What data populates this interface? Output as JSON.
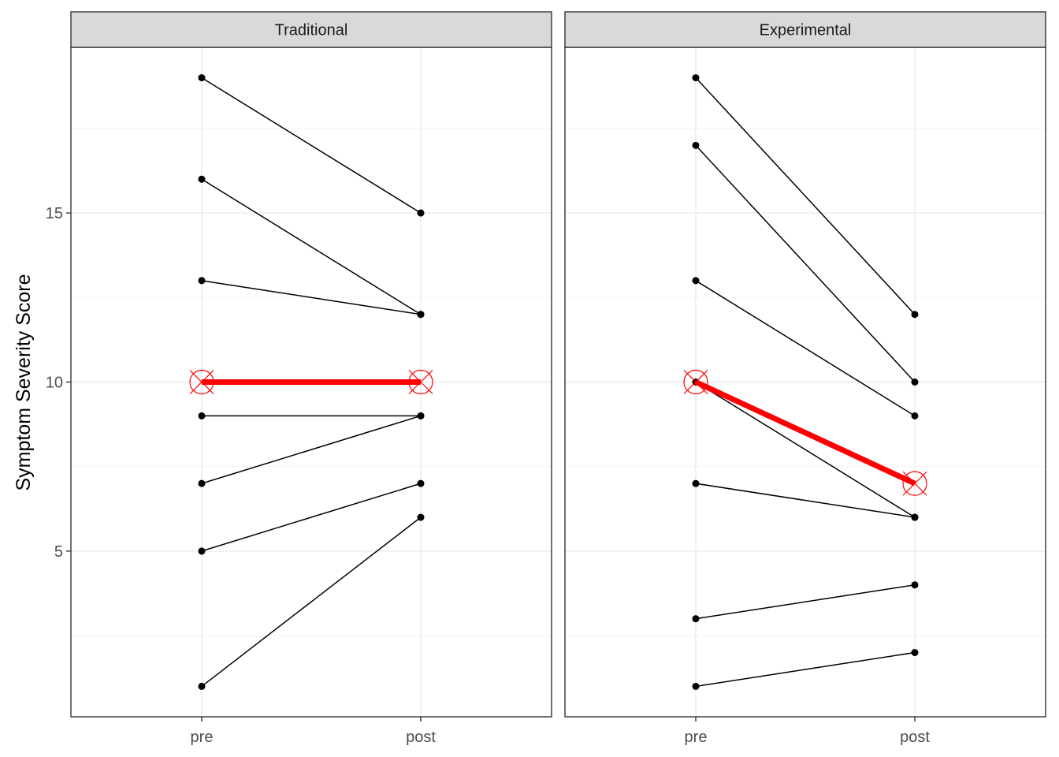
{
  "chart_data": {
    "type": "line",
    "ylabel": "Symptom Severity Score",
    "xlabel": "",
    "ylim": [
      0.1,
      19.9
    ],
    "yticks": [
      5,
      10,
      15
    ],
    "categories": [
      "pre",
      "post"
    ],
    "grid": true,
    "legend": "none",
    "individual_color": "#000000",
    "mean_color": "#ff0000",
    "panels": [
      {
        "name": "Traditional",
        "subjects": [
          [
            19,
            15
          ],
          [
            16,
            12
          ],
          [
            13,
            12
          ],
          [
            9,
            9
          ],
          [
            7,
            9
          ],
          [
            5,
            7
          ],
          [
            1,
            6
          ]
        ],
        "mean": [
          10,
          10
        ]
      },
      {
        "name": "Experimental",
        "subjects": [
          [
            19,
            12
          ],
          [
            17,
            10
          ],
          [
            13,
            9
          ],
          [
            10,
            6
          ],
          [
            7,
            6
          ],
          [
            3,
            4
          ],
          [
            1,
            2
          ]
        ],
        "mean": [
          10,
          7
        ]
      }
    ]
  }
}
